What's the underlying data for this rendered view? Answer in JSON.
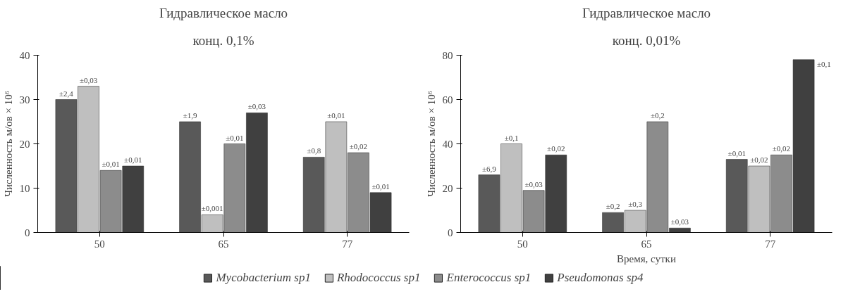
{
  "chart_data": [
    {
      "type": "bar",
      "title": "Гидравлическое масло",
      "subtitle": "конц. 0,1%",
      "ylabel": "Численность м/ов × 10⁶",
      "categories": [
        "50",
        "65",
        "77"
      ],
      "ylim": [
        0,
        40
      ],
      "yticks": [
        0,
        10,
        20,
        30,
        40
      ],
      "grid": false,
      "legend": "bottom",
      "series": [
        {
          "name": "Mycobacterium sp1",
          "color": "#595959",
          "values": [
            30,
            25,
            17
          ]
        },
        {
          "name": "Rhodococcus sp1",
          "color": "#bfbfbf",
          "values": [
            33,
            4,
            25
          ]
        },
        {
          "name": "Enterococcus sp1",
          "color": "#8c8c8c",
          "values": [
            14,
            20,
            18
          ]
        },
        {
          "name": "Pseudomonas sp4",
          "color": "#404040",
          "values": [
            15,
            27,
            9
          ]
        }
      ],
      "annotations": [
        "±2,4",
        "±1,9",
        "±0,8",
        "±0,03",
        "±0,001",
        "±0,01",
        "±0,01",
        "±0,01",
        "±0,02",
        "±0,01",
        "±0,03",
        "±0,01"
      ]
    },
    {
      "type": "bar",
      "title": "Гидравлическое масло",
      "subtitle": "конц. 0,01%",
      "ylabel": "Численность м/ов × 10⁶",
      "xlabel": "Время, сутки",
      "categories": [
        "50",
        "65",
        "77"
      ],
      "ylim": [
        0,
        80
      ],
      "yticks": [
        0,
        20,
        40,
        60,
        80
      ],
      "grid": false,
      "series": [
        {
          "color": "#595959",
          "values": [
            26,
            9,
            33
          ]
        },
        {
          "color": "#bfbfbf",
          "values": [
            40,
            10,
            30
          ]
        },
        {
          "color": "#8c8c8c",
          "values": [
            19,
            50,
            35
          ]
        },
        {
          "color": "#404040",
          "values": [
            35,
            2,
            78
          ]
        }
      ],
      "annotations": [
        "±6,9",
        "±0,2",
        "±0,01",
        "±0,1",
        "±0,3",
        "±0,02",
        "±0,03",
        "±0,2",
        "±0,02",
        "±0,02",
        "±0,03",
        "±0,1"
      ]
    }
  ]
}
